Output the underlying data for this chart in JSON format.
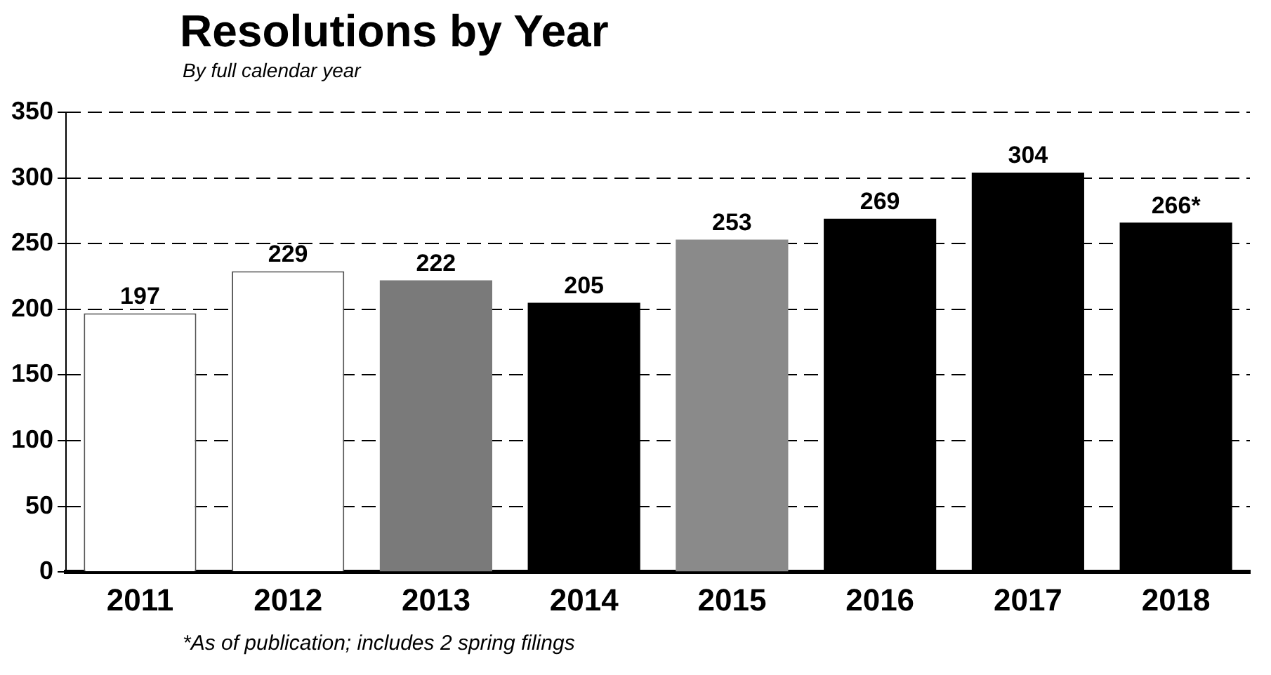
{
  "chart_data": {
    "type": "bar",
    "title": "Resolutions by Year",
    "subtitle": "By full calendar year",
    "categories": [
      "2011",
      "2012",
      "2013",
      "2014",
      "2015",
      "2016",
      "2017",
      "2018"
    ],
    "values": [
      197,
      229,
      222,
      205,
      253,
      269,
      304,
      266
    ],
    "colors": [
      "#ffffff",
      "#ffffff",
      "#7a7a7a",
      "#000000",
      "#8a8a8a",
      "#000000",
      "#000000",
      "#000000"
    ],
    "value_labels": [
      "197",
      "229",
      "222",
      "205",
      "253",
      "269",
      "304",
      "266*"
    ],
    "ylim": [
      0,
      350
    ],
    "yticks": [
      0,
      50,
      100,
      150,
      200,
      250,
      300,
      350
    ],
    "grid": "y",
    "annotations": [
      "*As of publication; includes 2 spring filings"
    ]
  }
}
